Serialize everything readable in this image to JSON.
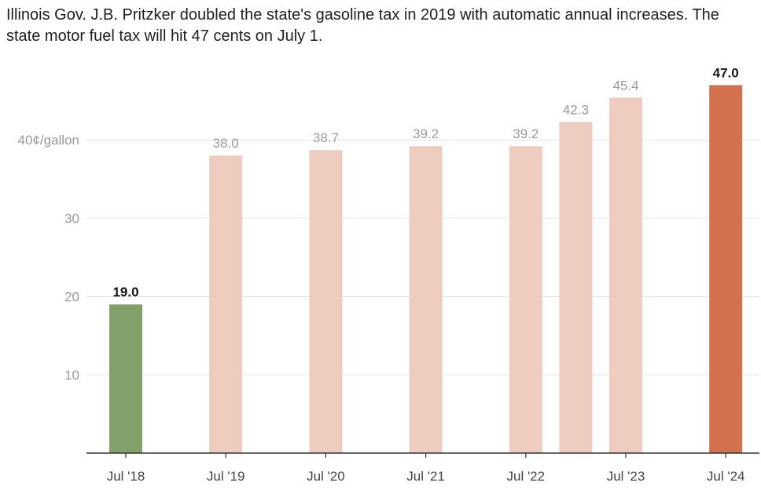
{
  "title": "Illinois Gov. J.B. Pritzker doubled the state's gasoline tax in 2019 with automatic annual increases. The state motor fuel tax will hit 47 cents on July 1.",
  "colors": {
    "first": "#84a06a",
    "middle": "#eecdc0",
    "last": "#d3704e"
  },
  "chart_data": {
    "type": "bar",
    "title": "Illinois Gov. J.B. Pritzker doubled the state's gasoline tax in 2019 with automatic annual increases. The state motor fuel tax will hit 47 cents on July 1.",
    "ylim": [
      0,
      47
    ],
    "y_ticks": [
      {
        "value": 10,
        "label": "10"
      },
      {
        "value": 20,
        "label": "20"
      },
      {
        "value": 30,
        "label": "30"
      },
      {
        "value": 40,
        "label": "40¢/gallon"
      }
    ],
    "x_ticks": [
      "Jul '18",
      "Jul '19",
      "Jul '20",
      "Jul '21",
      "Jul '22",
      "Jul '23",
      "Jul '24"
    ],
    "bars": [
      {
        "date": "2018-07",
        "value": 19.0,
        "label": "19.0",
        "color": "first",
        "emphasis": true
      },
      {
        "date": "2019-07",
        "value": 38.0,
        "label": "38.0",
        "color": "middle",
        "emphasis": false
      },
      {
        "date": "2020-07",
        "value": 38.7,
        "label": "38.7",
        "color": "middle",
        "emphasis": false
      },
      {
        "date": "2021-07",
        "value": 39.2,
        "label": "39.2",
        "color": "middle",
        "emphasis": false
      },
      {
        "date": "2022-07",
        "value": 39.2,
        "label": "39.2",
        "color": "middle",
        "emphasis": false
      },
      {
        "date": "2023-01",
        "value": 42.3,
        "label": "42.3",
        "color": "middle",
        "emphasis": false
      },
      {
        "date": "2023-07",
        "value": 45.4,
        "label": "45.4",
        "color": "middle",
        "emphasis": false
      },
      {
        "date": "2024-07",
        "value": 47.0,
        "label": "47.0",
        "color": "last",
        "emphasis": true
      }
    ],
    "grid": true
  }
}
